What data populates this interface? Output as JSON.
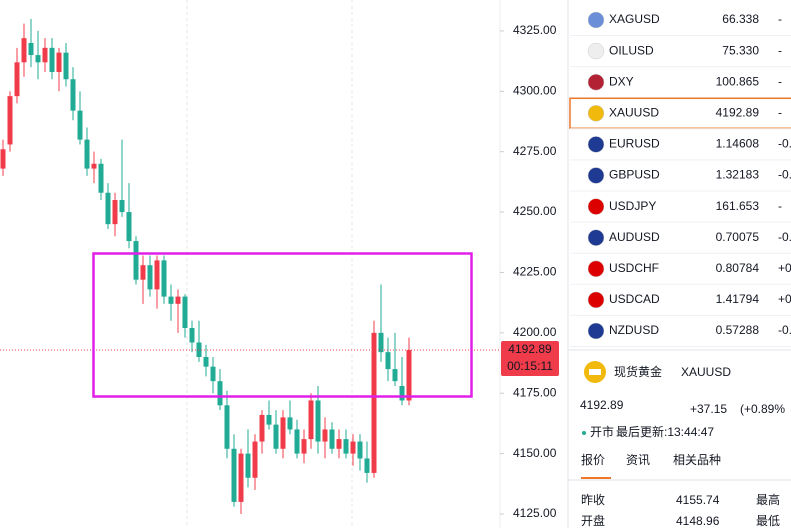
{
  "chart_data": {
    "type": "candlestick",
    "up_color": "#f03c4a",
    "down_color": "#22ab94",
    "ylim": [
      4119.2,
      4337.8
    ],
    "yticks": [
      {
        "value": 4325,
        "label": "4325.00"
      },
      {
        "value": 4300,
        "label": "4300.00"
      },
      {
        "value": 4275,
        "label": "4275.00"
      },
      {
        "value": 4250,
        "label": "4250.00"
      },
      {
        "value": 4225,
        "label": "4225.00"
      },
      {
        "value": 4200,
        "label": "4200.00"
      },
      {
        "value": 4175,
        "label": "4175.00"
      },
      {
        "value": 4150,
        "label": "4150.00"
      },
      {
        "value": 4125,
        "label": "4125.00"
      }
    ],
    "open": [
      4268,
      4278,
      4298,
      4312,
      4320,
      4315,
      4312,
      4318,
      4308,
      4316,
      4305,
      4292,
      4280,
      4268,
      4270,
      4258,
      4245,
      4255,
      4250,
      4238,
      4222,
      4228,
      4218,
      4230,
      4215,
      4212,
      4215,
      4202,
      4196,
      4190,
      4186,
      4180,
      4170,
      4152,
      4130,
      4150,
      4140,
      4155,
      4166,
      4162,
      4152,
      4165,
      4160,
      4150,
      4156,
      4172,
      4155,
      4160,
      4152,
      4156,
      4150,
      4155,
      4148,
      4142,
      4200,
      4192,
      4185,
      4178,
      4172
    ],
    "high": [
      4280,
      4300,
      4318,
      4328,
      4330,
      4325,
      4322,
      4322,
      4318,
      4320,
      4310,
      4300,
      4285,
      4275,
      4272,
      4262,
      4258,
      4280,
      4262,
      4240,
      4232,
      4232,
      4232,
      4232,
      4220,
      4218,
      4216,
      4205,
      4205,
      4195,
      4190,
      4185,
      4176,
      4158,
      4152,
      4160,
      4158,
      4168,
      4172,
      4168,
      4168,
      4172,
      4164,
      4160,
      4175,
      4178,
      4165,
      4163,
      4160,
      4160,
      4158,
      4158,
      4155,
      4205,
      4220,
      4198,
      4200,
      4190,
      4198
    ],
    "low": [
      4265,
      4275,
      4295,
      4306,
      4310,
      4305,
      4308,
      4305,
      4300,
      4302,
      4288,
      4278,
      4265,
      4262,
      4255,
      4243,
      4240,
      4248,
      4235,
      4220,
      4212,
      4215,
      4210,
      4212,
      4205,
      4200,
      4198,
      4192,
      4188,
      4182,
      4175,
      4168,
      4148,
      4128,
      4125,
      4136,
      4135,
      4150,
      4160,
      4150,
      4148,
      4158,
      4148,
      4146,
      4152,
      4150,
      4148,
      4150,
      4148,
      4148,
      4145,
      4143,
      4138,
      4140,
      4188,
      4180,
      4178,
      4170,
      4170
    ],
    "close": [
      4276,
      4298,
      4312,
      4322,
      4315,
      4312,
      4318,
      4308,
      4316,
      4305,
      4292,
      4280,
      4268,
      4270,
      4258,
      4245,
      4255,
      4250,
      4238,
      4222,
      4228,
      4218,
      4230,
      4215,
      4212,
      4215,
      4202,
      4196,
      4190,
      4186,
      4180,
      4170,
      4152,
      4130,
      4150,
      4140,
      4155,
      4166,
      4162,
      4152,
      4165,
      4160,
      4150,
      4156,
      4172,
      4155,
      4160,
      4152,
      4156,
      4150,
      4155,
      4148,
      4142,
      4200,
      4192,
      4185,
      4180,
      4172,
      4192.89
    ],
    "last_price": 4192.89,
    "countdown": "00:15:11"
  },
  "watchlist": [
    {
      "symbol": "XAGUSD",
      "price": "66.338",
      "change": "-"
    },
    {
      "symbol": "OILUSD",
      "price": "75.330",
      "change": "-"
    },
    {
      "symbol": "DXY",
      "price": "100.865",
      "change": "-"
    },
    {
      "symbol": "XAUUSD",
      "price": "4192.89",
      "change": "-"
    },
    {
      "symbol": "EURUSD",
      "price": "1.14608",
      "change": "-0."
    },
    {
      "symbol": "GBPUSD",
      "price": "1.32183",
      "change": "-0."
    },
    {
      "symbol": "USDJPY",
      "price": "161.653",
      "change": "-"
    },
    {
      "symbol": "AUDUSD",
      "price": "0.70075",
      "change": "-0."
    },
    {
      "symbol": "USDCHF",
      "price": "0.80784",
      "change": "+0."
    },
    {
      "symbol": "USDCAD",
      "price": "1.41794",
      "change": "+0."
    },
    {
      "symbol": "NZDUSD",
      "price": "0.57288",
      "change": "-0."
    }
  ],
  "quote": {
    "name": "现货黄金",
    "symbol": "XAUUSD",
    "price": "4192.89",
    "change": "+37.15",
    "change_pct": "(+0.89%",
    "status": "开市",
    "updated": "最后更新:13:44:47",
    "tabs": [
      "报价",
      "资讯",
      "相关品种"
    ],
    "stats": [
      [
        "昨收",
        "4155.74",
        "最高"
      ],
      [
        "开盘",
        "4148.96",
        "最低"
      ]
    ]
  }
}
